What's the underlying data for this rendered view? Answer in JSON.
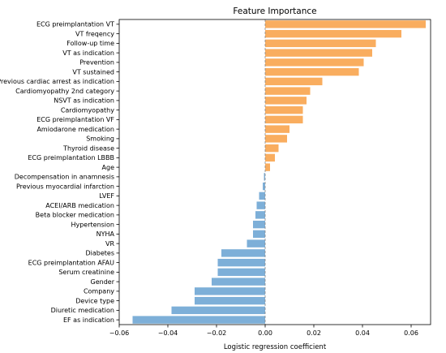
{
  "chart_data": {
    "type": "bar",
    "orientation": "horizontal",
    "title": "Feature Importance",
    "xlabel": "Logistic regression coefficient",
    "ylabel": "",
    "xlim": [
      -0.06,
      0.068
    ],
    "xticks": [
      -0.06,
      -0.04,
      -0.02,
      0.0,
      0.02,
      0.04,
      0.06
    ],
    "xtick_labels": [
      "−0.06",
      "−0.04",
      "−0.02",
      "0.00",
      "0.02",
      "0.04",
      "0.06"
    ],
    "zero_line": "dashed",
    "grid": false,
    "colors": {
      "positive": "#f9ad5f",
      "negative": "#7dafd8",
      "zero_line": "#888888"
    },
    "categories": [
      "ECG preimplantation VT",
      "VT freqency",
      "Follow-up time",
      "VT as indication",
      "Prevention",
      "VT sustained",
      "Previous cardiac arrest as indication",
      "Cardiomyopathy 2nd category",
      "NSVT as indication",
      "Cardiomyopathy",
      "ECG preimplantation VF",
      "Amiodarone medication",
      "Smoking",
      "Thyroid disease",
      "ECG preimplantation LBBB",
      "Age",
      "Decompensation in anamnesis",
      "Previous myocardial infarction",
      "LVEF",
      "ACEI/ARB medication",
      "Beta blocker medication",
      "Hypertension",
      "NYHA",
      "VR",
      "Diabetes",
      "ECG preimplantation AFAU",
      "Serum creatinine",
      "Gender",
      "Company",
      "Device type",
      "Diuretic medication",
      "EF as indication"
    ],
    "values": [
      0.066,
      0.056,
      0.0455,
      0.044,
      0.0405,
      0.0385,
      0.0235,
      0.0185,
      0.017,
      0.0155,
      0.0155,
      0.01,
      0.009,
      0.0055,
      0.004,
      0.002,
      -0.0005,
      -0.001,
      -0.0025,
      -0.0035,
      -0.004,
      -0.005,
      -0.005,
      -0.0075,
      -0.018,
      -0.0195,
      -0.0195,
      -0.022,
      -0.029,
      -0.029,
      -0.0385,
      -0.0545
    ]
  }
}
